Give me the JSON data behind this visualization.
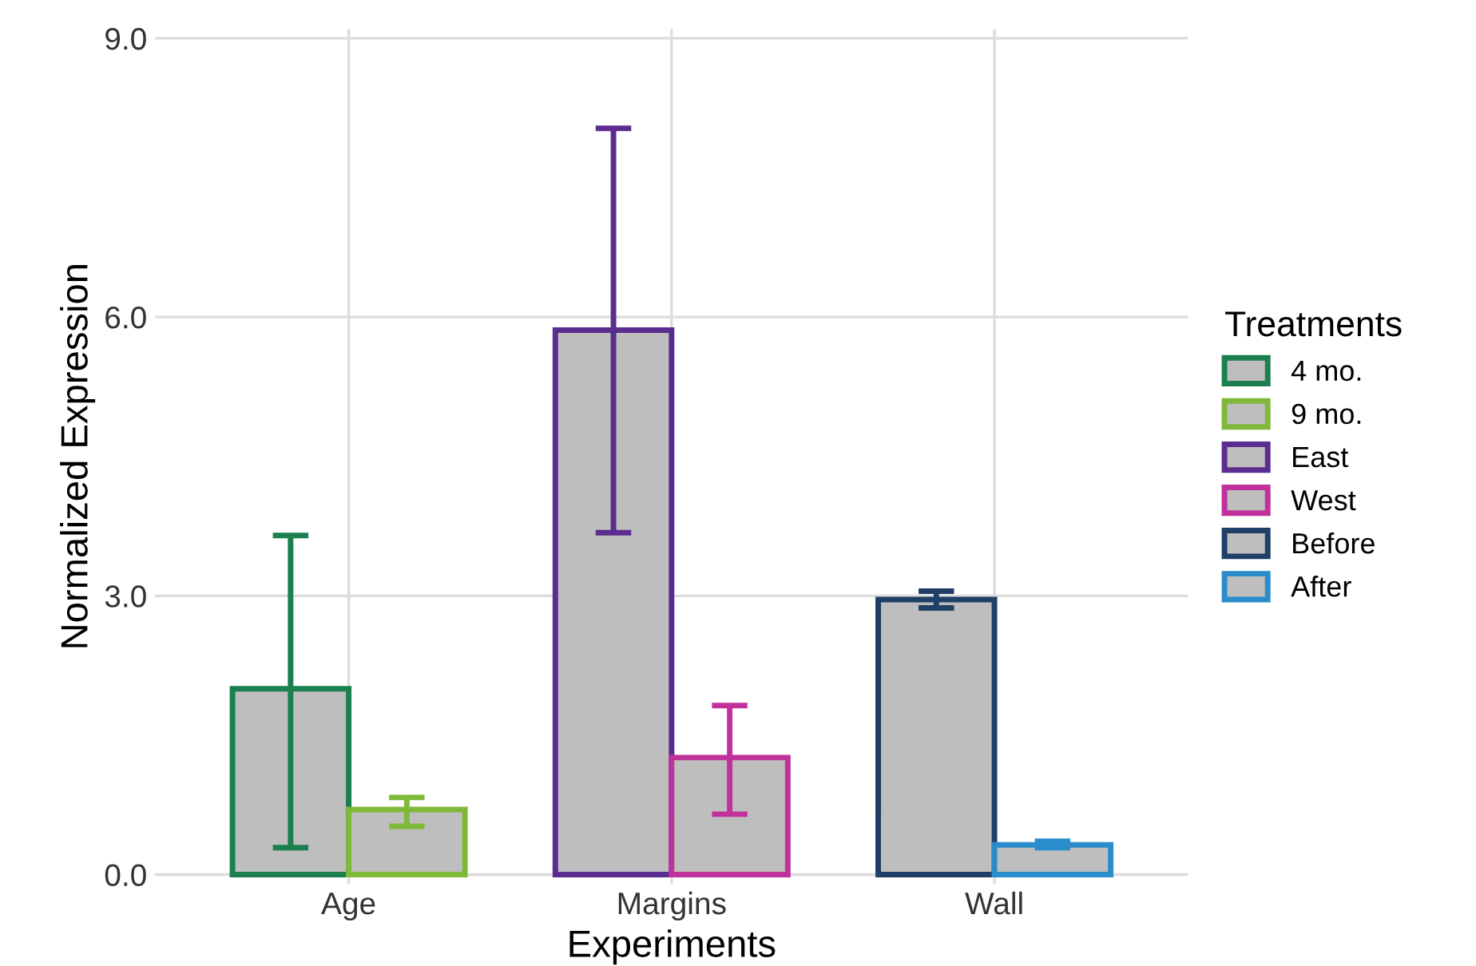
{
  "chart_data": {
    "type": "bar",
    "xlabel": "Experiments",
    "ylabel": "Normalized Expression",
    "legend_title": "Treatments",
    "categories": [
      "Age",
      "Margins",
      "Wall"
    ],
    "series": [
      {
        "name": "4 mo.",
        "color": "#1b7f4f",
        "values": [
          2.0,
          null,
          null
        ],
        "errors": [
          [
            0.29,
            3.65
          ],
          null,
          null
        ]
      },
      {
        "name": "9 mo.",
        "color": "#80b83a",
        "values": [
          0.7,
          null,
          null
        ],
        "errors": [
          [
            0.52,
            0.83
          ],
          null,
          null
        ]
      },
      {
        "name": "East",
        "color": "#5b2d8e",
        "values": [
          null,
          5.86,
          null
        ],
        "errors": [
          null,
          [
            3.68,
            8.03
          ],
          null
        ]
      },
      {
        "name": "West",
        "color": "#c0319b",
        "values": [
          null,
          1.26,
          null
        ],
        "errors": [
          null,
          [
            0.65,
            1.82
          ],
          null
        ]
      },
      {
        "name": "Before",
        "color": "#1f3f66",
        "values": [
          null,
          null,
          2.96
        ],
        "errors": [
          null,
          null,
          [
            2.87,
            3.05
          ]
        ]
      },
      {
        "name": "After",
        "color": "#2b8ccc",
        "values": [
          null,
          null,
          0.32
        ],
        "errors": [
          null,
          null,
          [
            0.29,
            0.36
          ]
        ]
      }
    ],
    "ylim": [
      -0.1,
      9.1
    ],
    "yticks": [
      {
        "value": 0,
        "label": "0.0"
      },
      {
        "value": 3,
        "label": "3.0"
      },
      {
        "value": 6,
        "label": "6.0"
      },
      {
        "value": 9,
        "label": "9.0"
      }
    ],
    "grid": true,
    "legend": "right"
  }
}
